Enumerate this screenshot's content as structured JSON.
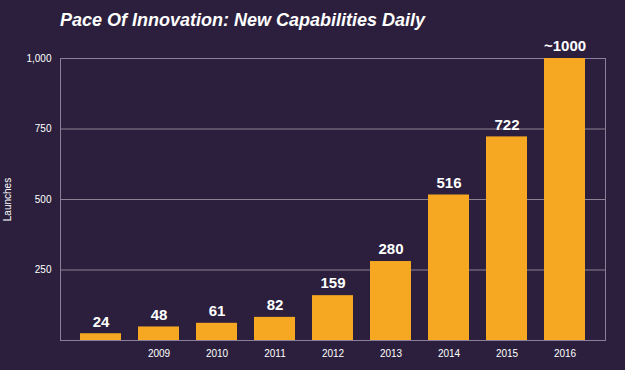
{
  "chart_data": {
    "type": "bar",
    "title": "Pace Of Innovation: New Capabilities Daily",
    "y_label": "Launches",
    "categories": [
      null,
      "2009",
      "2010",
      "2011",
      "2012",
      "2013",
      "2014",
      "2015",
      "2016"
    ],
    "values": [
      24,
      48,
      61,
      82,
      159,
      280,
      516,
      722,
      1000
    ],
    "value_labels": [
      "24",
      "48",
      "61",
      "82",
      "159",
      "280",
      "516",
      "722",
      "~1000"
    ],
    "color": "#f7a823",
    "ylim": [
      0,
      1000
    ],
    "yticks": [
      250,
      500,
      750,
      1000
    ],
    "grid": true,
    "data_labels": true
  }
}
